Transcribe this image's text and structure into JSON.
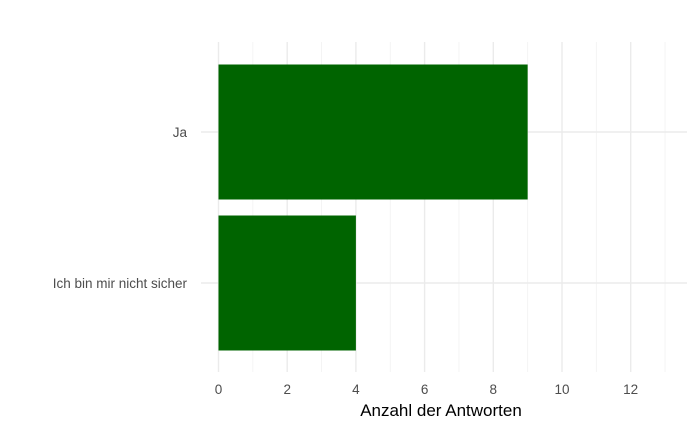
{
  "chart_data": {
    "type": "bar",
    "orientation": "horizontal",
    "categories": [
      "Ja",
      "Ich bin mir nicht sicher"
    ],
    "values": [
      9,
      4
    ],
    "xlabel": "Anzahl der Antworten",
    "ylabel": "",
    "xlim": [
      0,
      13.6
    ],
    "xticks": [
      0,
      2,
      4,
      6,
      8,
      10,
      12
    ],
    "bar_color": "#006400",
    "grid": true,
    "legend": "none"
  }
}
